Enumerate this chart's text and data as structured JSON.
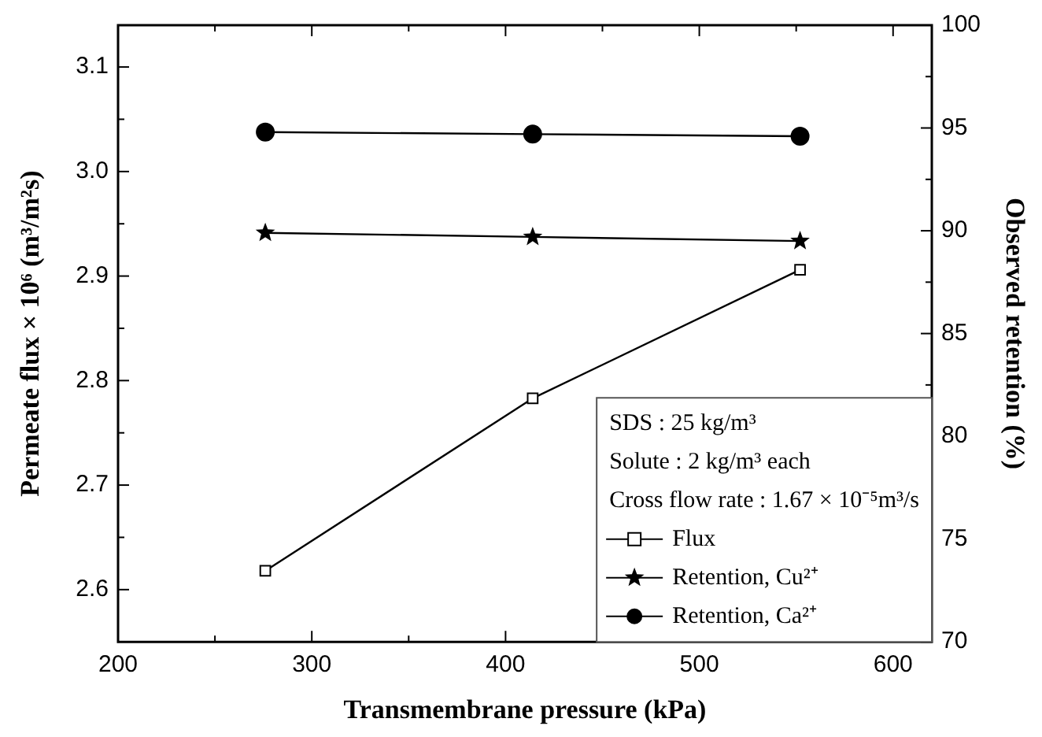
{
  "chart_data": {
    "type": "line",
    "xlabel": "Transmembrane pressure (kPa)",
    "ylabel": "Permeate flux × 10⁶ (m³/m²s)",
    "y2label": "Observed retention (%)",
    "x": [
      276,
      414,
      552
    ],
    "series": [
      {
        "name": "Flux",
        "color": "#000000",
        "marker": "square",
        "values": [
          2.618,
          2.783,
          2.906
        ]
      },
      {
        "name": "Retention, Cu²⁺",
        "color": "#000000",
        "marker": "star",
        "axis": "y2",
        "values": [
          89.9,
          89.7,
          89.5
        ]
      },
      {
        "name": "Retention, Ca²⁺",
        "color": "#000000",
        "marker": "circle",
        "axis": "y2",
        "values": [
          94.8,
          94.7,
          94.6
        ]
      }
    ],
    "xlim": [
      200,
      620
    ],
    "xticks": [
      200,
      {
        "value": 250,
        "label": null
      },
      300,
      {
        "value": 350,
        "label": null
      },
      400,
      {
        "value": 450,
        "label": null
      },
      500,
      {
        "value": 550,
        "label": null
      },
      600
    ],
    "ylim": [
      2.55,
      3.14
    ],
    "yticks": [
      {
        "value": 2.6,
        "label": "2.6"
      },
      {
        "value": 2.65,
        "label": null
      },
      {
        "value": 2.7,
        "label": "2.7"
      },
      {
        "value": 2.75,
        "label": null
      },
      {
        "value": 2.8,
        "label": "2.8"
      },
      {
        "value": 2.85,
        "label": null
      },
      {
        "value": 2.9,
        "label": "2.9"
      },
      {
        "value": 2.95,
        "label": null
      },
      {
        "value": 3.0,
        "label": "3.0"
      },
      {
        "value": 3.05,
        "label": null
      },
      {
        "value": 3.1,
        "label": "3.1"
      }
    ],
    "y2lim": [
      70,
      100
    ],
    "y2ticks": [
      70,
      {
        "value": 72.5,
        "label": null
      },
      75,
      {
        "value": 77.5,
        "label": null
      },
      80,
      {
        "value": 82.5,
        "label": null
      },
      85,
      {
        "value": 87.5,
        "label": null
      },
      90,
      {
        "value": 92.5,
        "label": null
      },
      95,
      {
        "value": 97.5,
        "label": null
      },
      100
    ],
    "annotations": [
      "SDS : 25 kg/m³",
      "Solute : 2 kg/m³ each",
      "Cross flow rate : 1.67 × 10⁻⁵m³/s"
    ],
    "legend": "bottom right",
    "grid": false,
    "line_style": "solid"
  }
}
